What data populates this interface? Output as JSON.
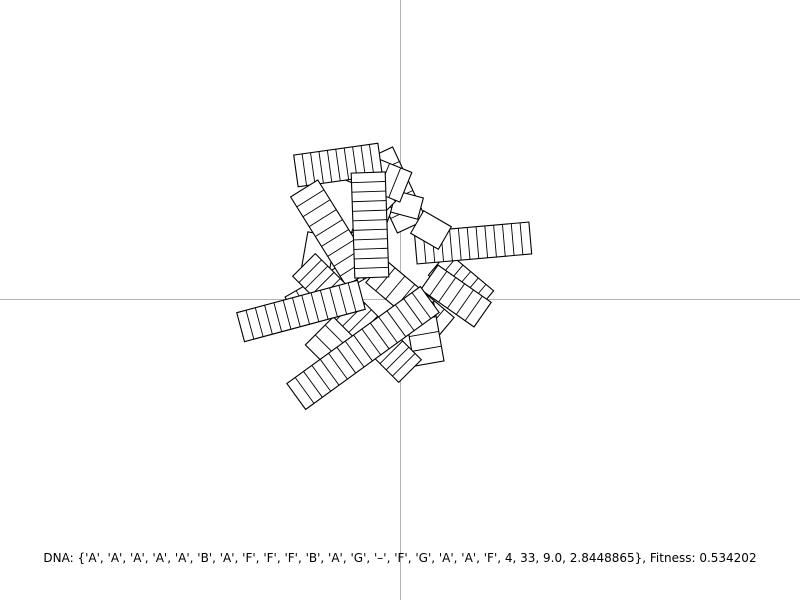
{
  "status_line": "DNA: {'A', 'A', 'A', 'A', 'A', 'B', 'A', 'F', 'F', 'F', 'B', 'A', 'G', '–', 'F', 'G', 'A', 'A', 'F', 4, 33, 9.0, 2.8448865}, Fitness: 0.534202",
  "colors": {
    "background": "#ffffff",
    "axis": "#b3b3b3",
    "stroke": "#000000"
  }
}
